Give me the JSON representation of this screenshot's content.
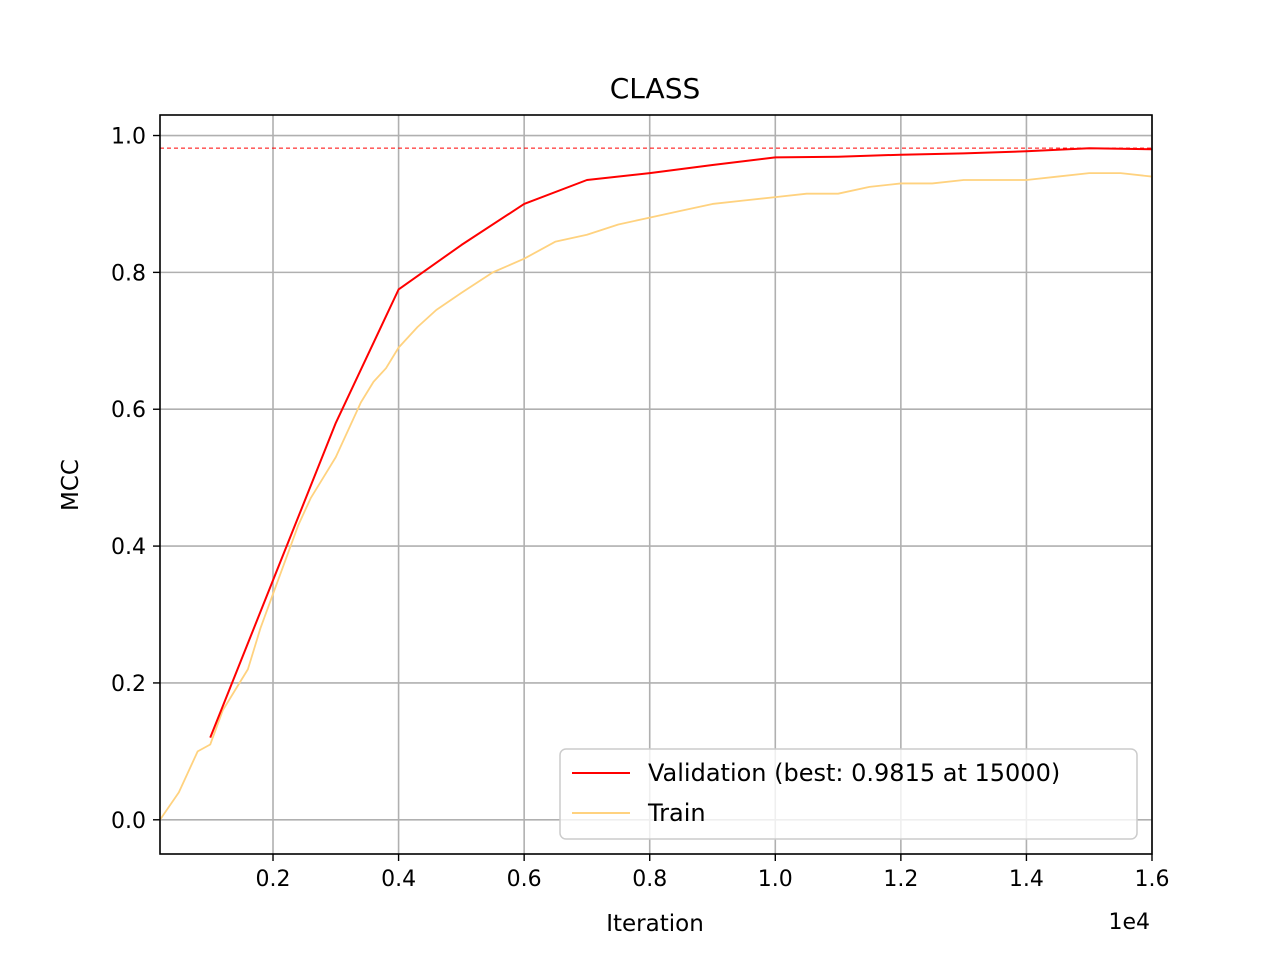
{
  "chart_data": {
    "type": "line",
    "title": "CLASS",
    "xlabel": "Iteration",
    "ylabel": "MCC",
    "x_scale_label": "1e4",
    "xlim": [
      200,
      16000
    ],
    "ylim": [
      -0.05,
      1.03
    ],
    "x_ticks": [
      2000,
      4000,
      6000,
      8000,
      10000,
      12000,
      14000,
      16000
    ],
    "x_tick_labels": [
      "0.2",
      "0.4",
      "0.6",
      "0.8",
      "1.0",
      "1.2",
      "1.4",
      "1.6"
    ],
    "y_ticks": [
      0.0,
      0.2,
      0.4,
      0.6,
      0.8,
      1.0
    ],
    "y_tick_labels": [
      "0.0",
      "0.2",
      "0.4",
      "0.6",
      "0.8",
      "1.0"
    ],
    "grid": true,
    "legend_position": "lower-right",
    "best_line": {
      "value": 0.9815,
      "color": "#ff0000",
      "style": "dashed"
    },
    "series": [
      {
        "name": "Validation (best: 0.9815 at 15000)",
        "color": "#ff0000",
        "x": [
          1000,
          2000,
          3000,
          4000,
          5000,
          6000,
          7000,
          8000,
          9000,
          10000,
          11000,
          12000,
          13000,
          14000,
          15000,
          16000
        ],
        "values": [
          0.12,
          0.35,
          0.58,
          0.775,
          0.84,
          0.9,
          0.935,
          0.945,
          0.957,
          0.968,
          0.969,
          0.972,
          0.974,
          0.977,
          0.9815,
          0.98
        ]
      },
      {
        "name": "Train",
        "color": "#ffd27f",
        "x": [
          200,
          500,
          800,
          1000,
          1200,
          1400,
          1600,
          1800,
          2000,
          2200,
          2400,
          2600,
          2800,
          3000,
          3200,
          3400,
          3600,
          3800,
          4000,
          4300,
          4600,
          5000,
          5500,
          6000,
          6500,
          7000,
          7500,
          8000,
          8500,
          9000,
          9500,
          10000,
          10500,
          11000,
          11500,
          12000,
          12500,
          13000,
          13500,
          14000,
          14500,
          15000,
          15500,
          16000
        ],
        "values": [
          0.0,
          0.04,
          0.1,
          0.11,
          0.16,
          0.19,
          0.22,
          0.28,
          0.33,
          0.38,
          0.43,
          0.47,
          0.5,
          0.53,
          0.57,
          0.61,
          0.64,
          0.66,
          0.69,
          0.72,
          0.745,
          0.77,
          0.8,
          0.82,
          0.845,
          0.855,
          0.87,
          0.88,
          0.89,
          0.9,
          0.905,
          0.91,
          0.915,
          0.915,
          0.925,
          0.93,
          0.93,
          0.935,
          0.935,
          0.935,
          0.94,
          0.945,
          0.945,
          0.94
        ]
      }
    ]
  }
}
